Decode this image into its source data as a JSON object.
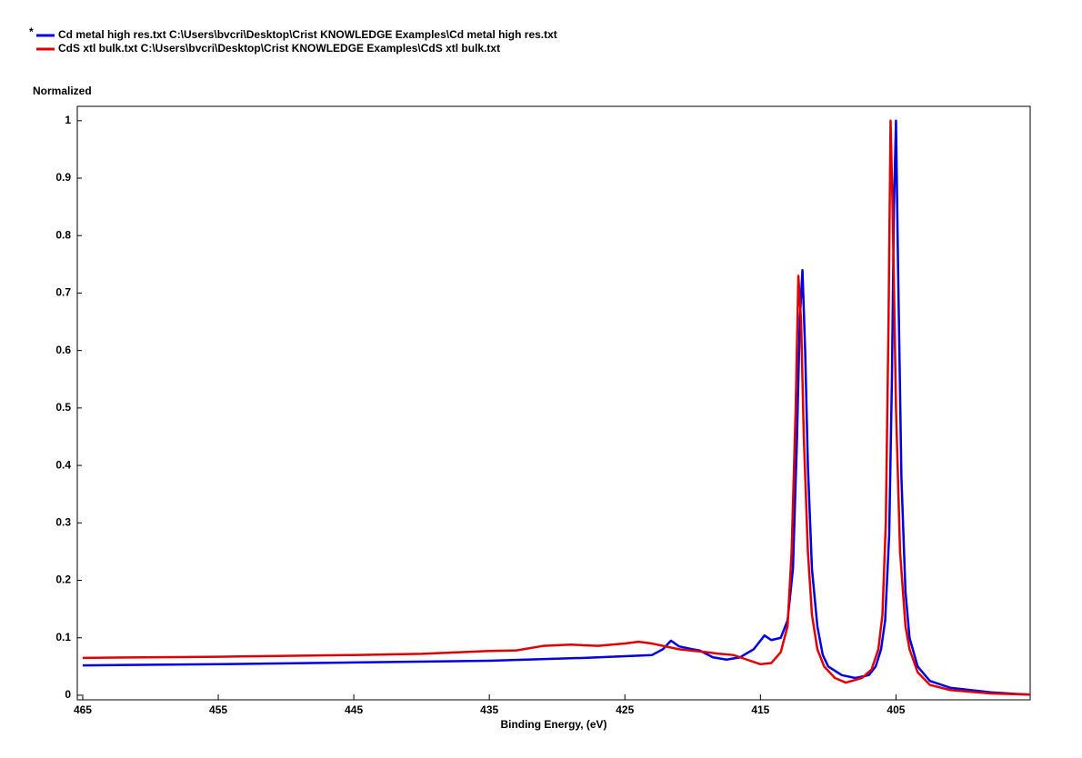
{
  "chart_data": {
    "type": "line",
    "y_label": "Normalized",
    "x_label": "Binding Energy, (eV)",
    "xlim": [
      465.4,
      395.1
    ],
    "xticks": [
      465,
      455,
      445,
      435,
      425,
      415,
      405
    ],
    "ylim": [
      -0.008,
      1.025
    ],
    "yticks": [
      0,
      0.1,
      0.2,
      0.3,
      0.4,
      0.5,
      0.6,
      0.7,
      0.8,
      0.9,
      1
    ],
    "series": [
      {
        "name": "Cd metal high res.txt C:\\Users\\bvcri\\Desktop\\Crist KNOWLEDGE Examples\\Cd metal high res.txt",
        "active_mark": "*",
        "color": "#0000e0",
        "x": [
          465,
          455,
          445,
          435,
          428,
          423,
          422.2,
          421.6,
          421,
          420,
          419.5,
          418.5,
          417.5,
          416.5,
          415.5,
          414.7,
          414.2,
          413.5,
          413,
          412.6,
          412.3,
          412.1,
          411.9,
          411.7,
          411.5,
          411.2,
          410.8,
          410.4,
          410,
          409,
          408,
          407,
          406.5,
          406.1,
          405.8,
          405.5,
          405.3,
          405.15,
          405.0,
          404.85,
          404.6,
          404.3,
          404,
          403.4,
          402.5,
          401,
          398,
          396,
          395.1
        ],
        "values": [
          0.052,
          0.054,
          0.057,
          0.06,
          0.065,
          0.07,
          0.08,
          0.095,
          0.085,
          0.08,
          0.078,
          0.066,
          0.062,
          0.066,
          0.08,
          0.104,
          0.096,
          0.1,
          0.13,
          0.22,
          0.45,
          0.65,
          0.74,
          0.6,
          0.4,
          0.22,
          0.12,
          0.07,
          0.05,
          0.035,
          0.03,
          0.035,
          0.05,
          0.08,
          0.13,
          0.28,
          0.55,
          0.85,
          1.0,
          0.75,
          0.38,
          0.18,
          0.1,
          0.05,
          0.025,
          0.013,
          0.005,
          0.002,
          0.001
        ]
      },
      {
        "name": "CdS xtl bulk.txt C:\\Users\\bvcri\\Desktop\\Crist KNOWLEDGE Examples\\CdS xtl bulk.txt",
        "color": "#e00000",
        "x": [
          465,
          455,
          445,
          440,
          435,
          433,
          431,
          429,
          427,
          425,
          424,
          423,
          421,
          419,
          418,
          417,
          416,
          415,
          414.2,
          413.5,
          413,
          412.7,
          412.4,
          412.2,
          412.0,
          411.8,
          411.5,
          411.2,
          410.8,
          410.3,
          409.5,
          408.7,
          407.5,
          406.8,
          406.3,
          406.0,
          405.75,
          405.55,
          405.4,
          405.25,
          405.0,
          404.7,
          404.3,
          404,
          403.4,
          402.5,
          401,
          398,
          395.1
        ],
        "values": [
          0.065,
          0.067,
          0.07,
          0.072,
          0.077,
          0.078,
          0.086,
          0.088,
          0.086,
          0.09,
          0.093,
          0.09,
          0.08,
          0.075,
          0.072,
          0.07,
          0.062,
          0.054,
          0.056,
          0.075,
          0.12,
          0.25,
          0.5,
          0.73,
          0.65,
          0.45,
          0.25,
          0.14,
          0.08,
          0.05,
          0.03,
          0.022,
          0.03,
          0.045,
          0.08,
          0.14,
          0.3,
          0.65,
          1.0,
          0.85,
          0.5,
          0.25,
          0.12,
          0.08,
          0.04,
          0.018,
          0.009,
          0.003,
          0.001
        ]
      }
    ]
  }
}
